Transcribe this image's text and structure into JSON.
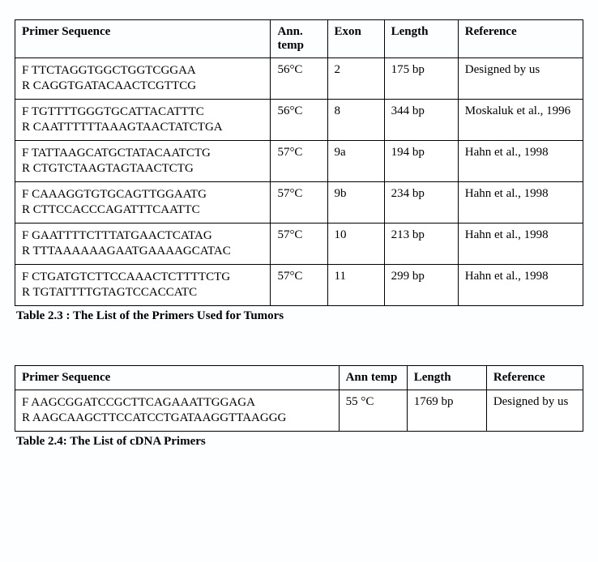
{
  "table1": {
    "columns": {
      "primer": "Primer Sequence",
      "ann": "Ann. temp",
      "exon": "Exon",
      "length": "Length",
      "ref": "Reference"
    },
    "rows": [
      {
        "f": "F  TTCTAGGTGGCTGGTCGGAA",
        "r": "R  CAGGTGATACAACTCGTTCG",
        "ann": "56°C",
        "exon": "2",
        "length": "175 bp",
        "ref": "Designed by us"
      },
      {
        "f": "F  TGTTTTGGGTGCATTACATTTC",
        "r": "R CAATTTTTTAAAGTAACTATCTGA",
        "ann": "56°C",
        "exon": "8",
        "length": "344 bp",
        "ref": "Moskaluk et al., 1996"
      },
      {
        "f": "F  TATTAAGCATGCTATACAATCTG",
        "r": "R  CTGTCTAAGTAGTAACTCTG",
        "ann": "57°C",
        "exon": "9a",
        "length": "194 bp",
        "ref": "Hahn et al., 1998"
      },
      {
        "f": "F  CAAAGGTGTGCAGTTGGAATG",
        "r": "R  CTTCCACCCAGATTTCAATTC",
        "ann": "57°C",
        "exon": "9b",
        "length": "234 bp",
        "ref": "Hahn et al., 1998"
      },
      {
        "f": "F GAATTTTCTTTATGAACTCATAG",
        "r": "R TTTAAAAAAGAATGAAAAGCATAC",
        "ann": "57°C",
        "exon": "10",
        "length": "213 bp",
        "ref": "Hahn et al., 1998"
      },
      {
        "f": "F  CTGATGTCTTCCAAACTCTTTTCTG",
        "r": "R  TGTATTTTGTAGTCCACCATC",
        "ann": "57°C",
        "exon": "11",
        "length": "299 bp",
        "ref": "Hahn et al., 1998"
      }
    ],
    "caption": "Table 2.3 : The List of the Primers Used for Tumors"
  },
  "table2": {
    "columns": {
      "primer": "Primer Sequence",
      "ann": "Ann temp",
      "length": "Length",
      "ref": "Reference"
    },
    "row": {
      "f": "F AAGCGGATCCGCTTCAGAAATTGGAGA",
      "r": "R AAGCAAGCTTCCATCCTGATAAGGTTAAGGG",
      "ann": "55 °C",
      "length": "1769 bp",
      "ref": "Designed by us"
    },
    "caption": "Table 2.4: The List of  cDNA Primers"
  },
  "colwidths": {
    "t1": {
      "primer": "45%",
      "ann": "10%",
      "exon": "10%",
      "length": "13%",
      "ref": "22%"
    },
    "t2": {
      "primer": "57%",
      "ann": "12%",
      "length": "14%",
      "ref": "17%"
    }
  }
}
